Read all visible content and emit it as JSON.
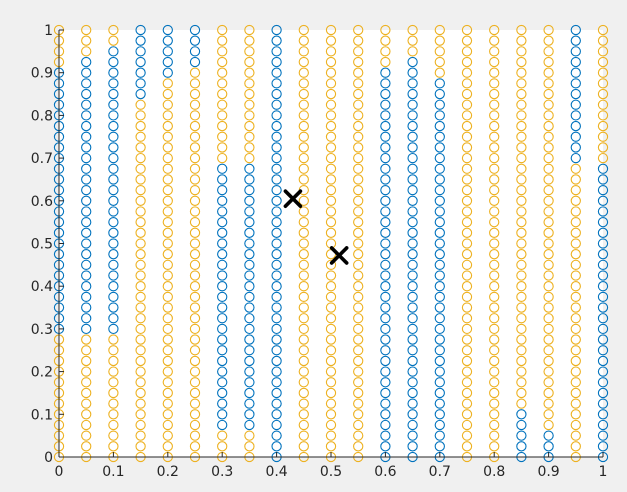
{
  "chart_data": {
    "type": "scatter",
    "title": "",
    "xlabel": "",
    "ylabel": "",
    "xlim": [
      0,
      1
    ],
    "ylim": [
      0,
      1
    ],
    "grid": false,
    "legend": "none",
    "x_ticks": [
      "0",
      "0.1",
      "0.2",
      "0.3",
      "0.4",
      "0.5",
      "0.6",
      "0.7",
      "0.8",
      "0.9",
      "1"
    ],
    "y_ticks": [
      "0",
      "0.1",
      "0.2",
      "0.3",
      "0.4",
      "0.5",
      "0.6",
      "0.7",
      "0.8",
      "0.9",
      "1"
    ],
    "grid_columns": 21,
    "grid_points_per_column": 41,
    "colors": {
      "class_1": "#0072BD",
      "class_2": "#EDB120",
      "marker_x": "#000000"
    },
    "column_x_values": [
      0,
      0.05,
      0.1,
      0.15,
      0.2,
      0.25,
      0.3,
      0.35,
      0.4,
      0.45,
      0.5,
      0.55,
      0.6,
      0.65,
      0.7,
      0.75,
      0.8,
      0.85,
      0.9,
      0.95,
      1
    ],
    "column_segments": [
      [
        {
          "class": 2,
          "from": 0,
          "to": 0.3
        },
        {
          "class": 1,
          "from": 0.3,
          "to": 0.925
        },
        {
          "class": 2,
          "from": 0.925,
          "to": 1
        }
      ],
      [
        {
          "class": 2,
          "from": 0,
          "to": 0.3
        },
        {
          "class": 1,
          "from": 0.3,
          "to": 0.95
        },
        {
          "class": 2,
          "from": 0.95,
          "to": 1
        }
      ],
      [
        {
          "class": 2,
          "from": 0,
          "to": 0.3
        },
        {
          "class": 1,
          "from": 0.3,
          "to": 0.975
        },
        {
          "class": 2,
          "from": 0.975,
          "to": 1
        }
      ],
      [
        {
          "class": 2,
          "from": 0,
          "to": 0.85
        },
        {
          "class": 1,
          "from": 0.85,
          "to": 1
        }
      ],
      [
        {
          "class": 2,
          "from": 0,
          "to": 0.9
        },
        {
          "class": 1,
          "from": 0.9,
          "to": 1
        }
      ],
      [
        {
          "class": 2,
          "from": 0,
          "to": 0.925
        },
        {
          "class": 1,
          "from": 0.925,
          "to": 1
        }
      ],
      [
        {
          "class": 2,
          "from": 0,
          "to": 0.075
        },
        {
          "class": 1,
          "from": 0.075,
          "to": 0.7
        },
        {
          "class": 2,
          "from": 0.7,
          "to": 1
        }
      ],
      [
        {
          "class": 2,
          "from": 0,
          "to": 0.075
        },
        {
          "class": 1,
          "from": 0.075,
          "to": 0.7
        },
        {
          "class": 2,
          "from": 0.7,
          "to": 1
        }
      ],
      [
        {
          "class": 1,
          "from": 0,
          "to": 1
        }
      ],
      [
        {
          "class": 2,
          "from": 0,
          "to": 1
        }
      ],
      [
        {
          "class": 2,
          "from": 0,
          "to": 1
        }
      ],
      [
        {
          "class": 2,
          "from": 0,
          "to": 1
        }
      ],
      [
        {
          "class": 1,
          "from": 0,
          "to": 0.925
        },
        {
          "class": 2,
          "from": 0.925,
          "to": 1
        }
      ],
      [
        {
          "class": 1,
          "from": 0,
          "to": 0.95
        },
        {
          "class": 2,
          "from": 0.95,
          "to": 1
        }
      ],
      [
        {
          "class": 1,
          "from": 0,
          "to": 0.9
        },
        {
          "class": 2,
          "from": 0.9,
          "to": 1
        }
      ],
      [
        {
          "class": 2,
          "from": 0,
          "to": 1
        }
      ],
      [
        {
          "class": 2,
          "from": 0,
          "to": 1
        }
      ],
      [
        {
          "class": 1,
          "from": 0,
          "to": 0.125
        },
        {
          "class": 2,
          "from": 0.125,
          "to": 1
        }
      ],
      [
        {
          "class": 1,
          "from": 0,
          "to": 0.075
        },
        {
          "class": 2,
          "from": 0.075,
          "to": 1
        }
      ],
      [
        {
          "class": 2,
          "from": 0,
          "to": 0.7
        },
        {
          "class": 1,
          "from": 0.7,
          "to": 1
        }
      ],
      [
        {
          "class": 1,
          "from": 0,
          "to": 0.7
        },
        {
          "class": 2,
          "from": 0.7,
          "to": 1
        }
      ]
    ],
    "x_markers": [
      {
        "x": 0.43,
        "y": 0.605
      },
      {
        "x": 0.515,
        "y": 0.472
      }
    ]
  }
}
